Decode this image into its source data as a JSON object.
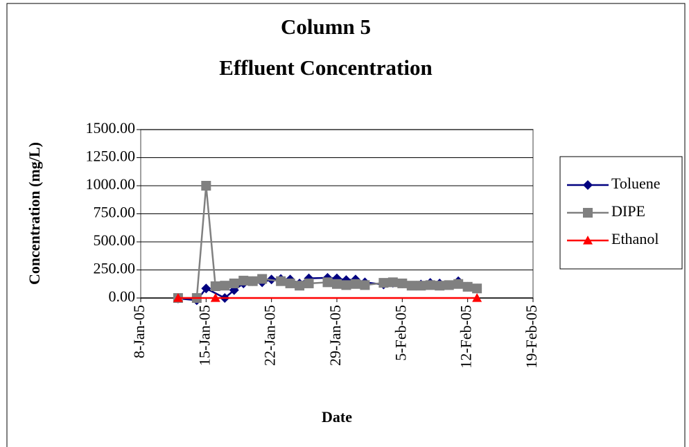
{
  "chart_data": {
    "type": "line",
    "title": "Column 5",
    "subtitle": "Effluent Concentration",
    "x_label": "Date",
    "y_label": "Concentration (mg/L)",
    "xlim": [
      "2005-01-08",
      "2005-02-19"
    ],
    "xticks": [
      {
        "value": "2005-01-08",
        "label": "8-Jan-05"
      },
      {
        "value": "2005-01-15",
        "label": "15-Jan-05"
      },
      {
        "value": "2005-01-22",
        "label": "22-Jan-05"
      },
      {
        "value": "2005-01-29",
        "label": "29-Jan-05"
      },
      {
        "value": "2005-02-05",
        "label": "5-Feb-05"
      },
      {
        "value": "2005-02-12",
        "label": "12-Feb-05"
      },
      {
        "value": "2005-02-19",
        "label": "19-Feb-05"
      }
    ],
    "ylim": [
      0,
      1500
    ],
    "yticks": [
      {
        "value": 0,
        "label": "0.00"
      },
      {
        "value": 250,
        "label": "250.00"
      },
      {
        "value": 500,
        "label": "500.00"
      },
      {
        "value": 750,
        "label": "750.00"
      },
      {
        "value": 1000,
        "label": "1000.00"
      },
      {
        "value": 1250,
        "label": "1250.00"
      },
      {
        "value": 1500,
        "label": "1500.00"
      }
    ],
    "grid": true,
    "legend": "right",
    "series": [
      {
        "name": "Toluene",
        "color": "#000080",
        "marker": "diamond",
        "x": [
          "2005-01-12",
          "2005-01-14",
          "2005-01-15",
          "2005-01-17",
          "2005-01-18",
          "2005-01-19",
          "2005-01-20",
          "2005-01-21",
          "2005-01-22",
          "2005-01-23",
          "2005-01-24",
          "2005-01-25",
          "2005-01-26",
          "2005-01-28",
          "2005-01-29",
          "2005-01-30",
          "2005-01-31",
          "2005-02-01",
          "2005-02-03",
          "2005-02-04",
          "2005-02-05",
          "2005-02-07",
          "2005-02-08",
          "2005-02-09",
          "2005-02-11",
          "2005-02-12",
          "2005-02-13"
        ],
        "values": [
          -5,
          -20,
          85,
          0,
          70,
          130,
          150,
          140,
          165,
          170,
          165,
          130,
          175,
          180,
          175,
          160,
          165,
          140,
          120,
          135,
          130,
          120,
          135,
          130,
          150,
          100,
          85
        ]
      },
      {
        "name": "DIPE",
        "color": "#808080",
        "marker": "square",
        "x": [
          "2005-01-12",
          "2005-01-14",
          "2005-01-15",
          "2005-01-16",
          "2005-01-17",
          "2005-01-18",
          "2005-01-19",
          "2005-01-20",
          "2005-01-21",
          "2005-01-23",
          "2005-01-24",
          "2005-01-25",
          "2005-01-26",
          "2005-01-28",
          "2005-01-29",
          "2005-01-30",
          "2005-01-31",
          "2005-02-01",
          "2005-02-03",
          "2005-02-04",
          "2005-02-05",
          "2005-02-06",
          "2005-02-07",
          "2005-02-08",
          "2005-02-09",
          "2005-02-10",
          "2005-02-11",
          "2005-02-12",
          "2005-02-13"
        ],
        "values": [
          0,
          0,
          1000,
          105,
          110,
          130,
          155,
          150,
          170,
          150,
          130,
          110,
          130,
          140,
          125,
          115,
          125,
          115,
          135,
          140,
          130,
          110,
          110,
          115,
          110,
          115,
          125,
          100,
          85
        ]
      },
      {
        "name": "Ethanol",
        "color": "#ff0000",
        "marker": "triangle",
        "x": [
          "2005-01-12",
          "2005-01-16",
          "2005-02-13"
        ],
        "values": [
          0,
          0,
          0
        ]
      }
    ]
  }
}
